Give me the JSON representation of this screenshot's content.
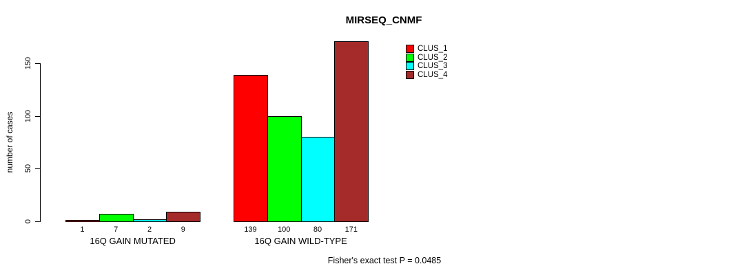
{
  "figure": {
    "background": "#FFFFFF",
    "text_color": "#000000"
  },
  "chart_data": {
    "type": "bar",
    "title": "MIRSEQ_CNMF",
    "xlabel": "",
    "ylabel": "number of cases",
    "categories": [
      "16Q GAIN MUTATED",
      "16Q GAIN WILD-TYPE"
    ],
    "series": [
      {
        "name": "CLUS_1",
        "color": "#FF0000",
        "values": [
          1,
          139
        ]
      },
      {
        "name": "CLUS_2",
        "color": "#00FF00",
        "values": [
          7,
          100
        ]
      },
      {
        "name": "CLUS_3",
        "color": "#00FFFF",
        "values": [
          2,
          80
        ]
      },
      {
        "name": "CLUS_4",
        "color": "#A52A2A",
        "values": [
          9,
          171
        ]
      }
    ],
    "bar_value_labels": [
      [
        1,
        7,
        2,
        9
      ],
      [
        139,
        100,
        80,
        171
      ]
    ],
    "yticks": [
      0,
      50,
      100,
      150
    ],
    "ylim": [
      0,
      171
    ],
    "grid": false,
    "legend_position": "top-right",
    "legend_entries": [
      "CLUS_1",
      "CLUS_2",
      "CLUS_3",
      "CLUS_4"
    ],
    "annotation": "Fisher's exact test P = 0.0485"
  }
}
